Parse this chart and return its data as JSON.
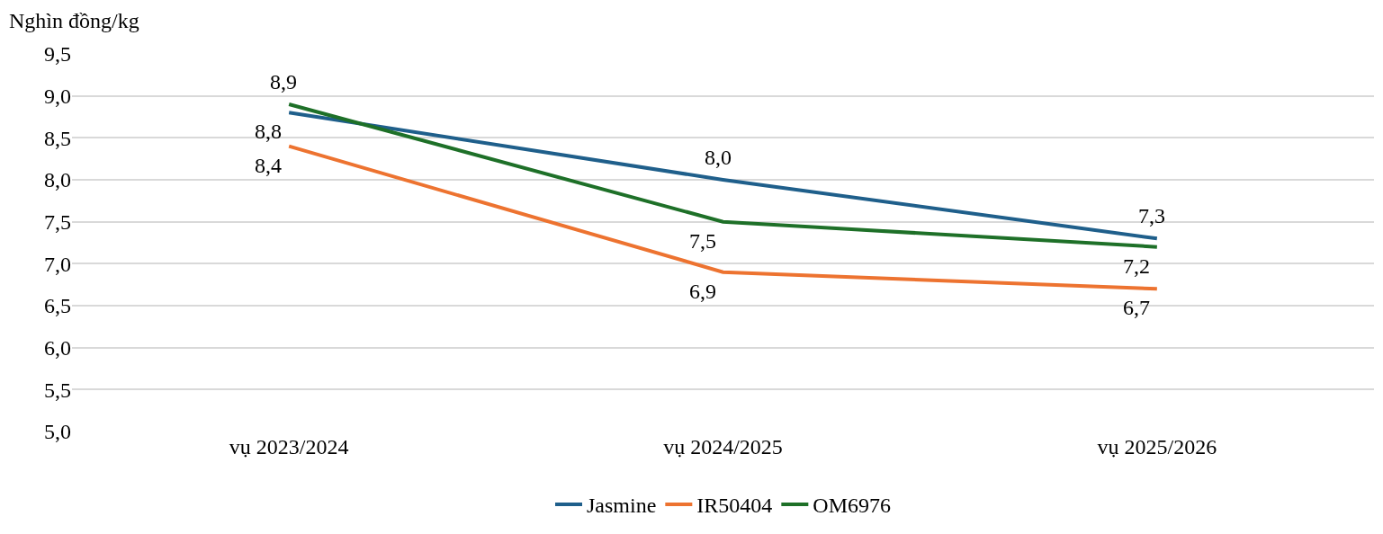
{
  "chart_data": {
    "type": "line",
    "ylabel": "Nghìn đồng/kg",
    "categories": [
      "vụ 2023/2024",
      "vụ 2024/2025",
      "vụ 2025/2026"
    ],
    "series": [
      {
        "name": "Jasmine",
        "color": "#1f5f8b",
        "values": [
          8.8,
          8.0,
          7.3
        ],
        "value_labels": [
          "8,8",
          "8,0",
          "7,3"
        ]
      },
      {
        "name": "IR50404",
        "color": "#ed7330",
        "values": [
          8.4,
          6.9,
          6.7
        ],
        "value_labels": [
          "8,4",
          "6,9",
          "6,7"
        ]
      },
      {
        "name": "OM6976",
        "color": "#1e7028",
        "values": [
          8.9,
          7.5,
          7.2
        ],
        "value_labels": [
          "8,9",
          "7,5",
          "7,2"
        ]
      }
    ],
    "ylim": [
      5.0,
      9.5
    ],
    "yticks": [
      {
        "value": 5.0,
        "label": "5,0"
      },
      {
        "value": 5.5,
        "label": "5,5"
      },
      {
        "value": 6.0,
        "label": "6,0"
      },
      {
        "value": 6.5,
        "label": "6,5"
      },
      {
        "value": 7.0,
        "label": "7,0"
      },
      {
        "value": 7.5,
        "label": "7,5"
      },
      {
        "value": 8.0,
        "label": "8,0"
      },
      {
        "value": 8.5,
        "label": "8,5"
      },
      {
        "value": 9.0,
        "label": "9,0"
      },
      {
        "value": 9.5,
        "label": "9,5"
      }
    ],
    "grid": "y",
    "legend": "bottom",
    "marker": "none",
    "line_style": "solid"
  }
}
